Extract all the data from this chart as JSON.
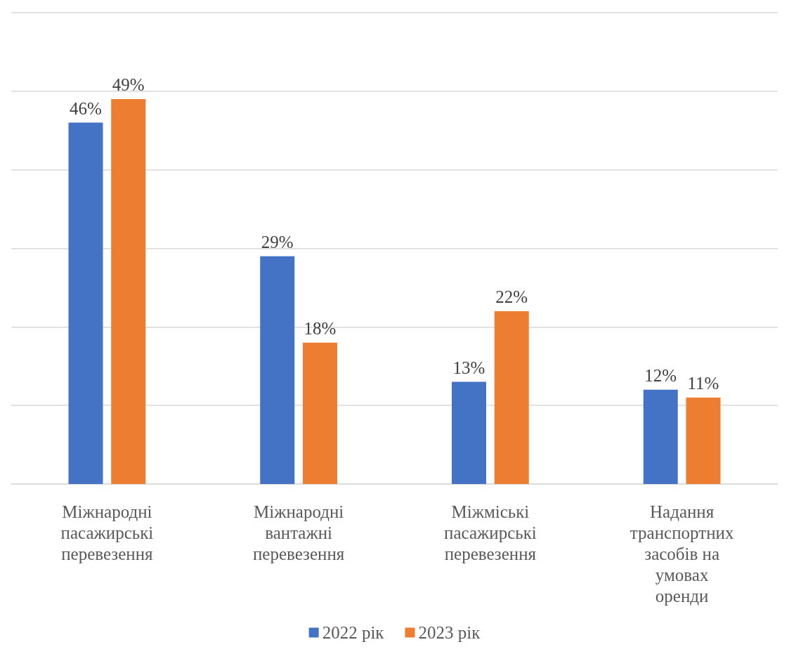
{
  "chart_data": {
    "type": "bar",
    "categories": [
      "Міжнародні пасажирські перевезення",
      "Міжнародні вантажні перевезення",
      "Міжміські пасажирські перевезення",
      "Надання транспортних засобів на умовах оренди"
    ],
    "series": [
      {
        "name": "2022 рік",
        "color": "#4472c4",
        "values": [
          46,
          29,
          13,
          12
        ],
        "value_labels": [
          "46%",
          "29%",
          "13%",
          "12%"
        ]
      },
      {
        "name": "2023 рік",
        "color": "#ed7d31",
        "values": [
          49,
          18,
          22,
          11
        ],
        "value_labels": [
          "49%",
          "18%",
          "22%",
          "11%"
        ]
      }
    ],
    "ylim": [
      0,
      60
    ],
    "yticks": [
      {
        "value": 0,
        "label": null
      },
      {
        "value": 10,
        "label": null
      },
      {
        "value": 20,
        "label": null
      },
      {
        "value": 30,
        "label": null
      },
      {
        "value": 40,
        "label": null
      },
      {
        "value": 50,
        "label": null
      },
      {
        "value": 60,
        "label": null
      }
    ],
    "tick_labels": "x",
    "grid": "y",
    "legend": "bottom"
  }
}
